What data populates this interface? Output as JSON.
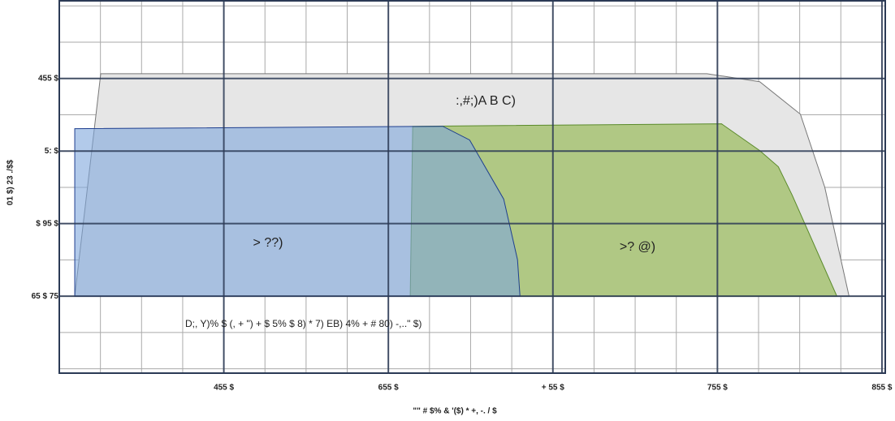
{
  "chart_data": {
    "type": "area",
    "xlabel": "\"\" # $%  & '($) * +, -. / $",
    "ylabel": "01 $) 23 ./$$",
    "annotation": "D;, Y)% $ (, + \") + $ 5% $ 8) * 7) EB) 4% + # 80) -,..\" $)",
    "xlim": [
      0,
      5.02
    ],
    "ylim": [
      -0.06,
      5.07
    ],
    "xticks": [
      {
        "value": 1,
        "label": "455 $"
      },
      {
        "value": 2,
        "label": "655 $"
      },
      {
        "value": 3,
        "label": "+ 55 $"
      },
      {
        "value": 4,
        "label": "755 $"
      },
      {
        "value": 5,
        "label": "855 $"
      }
    ],
    "yticks": [
      {
        "value": 1,
        "label": "65 $ 75"
      },
      {
        "value": 2,
        "label": "$ 95 $"
      },
      {
        "value": 3,
        "label": "5: $"
      },
      {
        "value": 4,
        "label": "455 $"
      }
    ],
    "grid": true,
    "series": [
      {
        "name": ":,#;)A B C)",
        "color": "#e6e6e6",
        "stroke": "#777777",
        "x": [
          0.094,
          0.252,
          3.936,
          4.257,
          4.504,
          4.652,
          4.8
        ],
        "values": [
          1,
          4.066,
          4.066,
          3.955,
          3.508,
          2.505,
          1
        ]
      },
      {
        "name": ">? @)",
        "color": "#b0c884",
        "stroke": "#5a8a2a",
        "x": [
          2.133,
          2.148,
          4.025,
          4.257,
          4.37,
          4.454,
          4.726
        ],
        "values": [
          1,
          3.341,
          3.375,
          3.007,
          2.784,
          2.394,
          1
        ]
      },
      {
        "name": "> ??)",
        "color": "#7fa6dc",
        "stroke": "#1f3f8f",
        "x": [
          0.094,
          0.094,
          2.331,
          2.494,
          2.701,
          2.785,
          2.8
        ],
        "values": [
          1,
          3.308,
          3.341,
          3.152,
          2.338,
          1.502,
          1
        ]
      }
    ]
  }
}
